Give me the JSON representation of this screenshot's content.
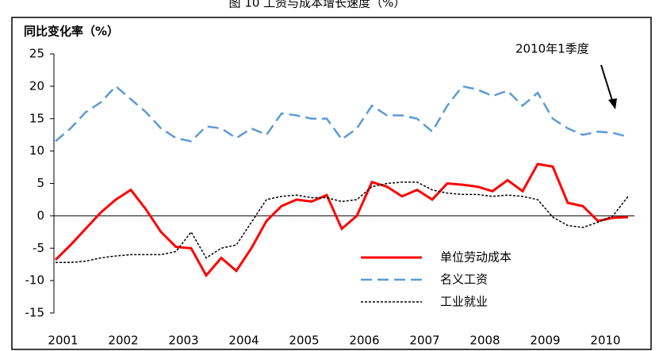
{
  "chart_data": {
    "type": "line",
    "title": "图 10 工资与成本增长速度（%）",
    "y_label": "同比变化率（%）",
    "annotation": "2010年1季度",
    "categories": [
      null,
      "2001",
      null,
      null,
      null,
      "2002",
      null,
      null,
      null,
      "2003",
      null,
      null,
      null,
      "2004",
      null,
      null,
      null,
      "2005",
      null,
      null,
      null,
      "2006",
      null,
      null,
      null,
      "2007",
      null,
      null,
      null,
      "2008",
      null,
      null,
      null,
      "2009",
      null,
      null,
      null,
      "2010",
      null
    ],
    "series": [
      {
        "name": "单位劳动成本",
        "color": "#ff0000",
        "dash": "solid",
        "values": [
          -6.8,
          -4.5,
          -2,
          0.5,
          2.5,
          4,
          1,
          -2.5,
          -4.8,
          -5,
          -9.2,
          -6.5,
          -8.5,
          -5,
          -0.8,
          1.5,
          2.5,
          2.2,
          3.2,
          -2,
          0,
          5.2,
          4.5,
          3,
          4,
          2.5,
          5,
          4.8,
          4.5,
          3.8,
          5.5,
          3.8,
          8,
          7.6,
          2,
          1.5,
          -0.8,
          -0.3,
          -0.2
        ]
      },
      {
        "name": "名义工资",
        "color": "#5b9bd5",
        "dash": "dashed",
        "values": [
          11.5,
          13.5,
          16,
          17.5,
          20,
          18,
          16,
          13.5,
          12,
          11.5,
          13.8,
          13.5,
          12,
          13.5,
          12.5,
          15.8,
          15.5,
          15,
          15,
          11.8,
          13.5,
          17,
          15.5,
          15.5,
          15,
          13,
          17,
          20,
          19.5,
          18.5,
          19.3,
          17,
          19,
          15,
          13.5,
          12.5,
          13,
          12.8,
          12.2
        ]
      },
      {
        "name": "工业就业",
        "color": "#000000",
        "dash": "dotted",
        "values": [
          -7.2,
          -7.2,
          -7,
          -6.5,
          -6.2,
          -6,
          -6,
          -6,
          -5.5,
          -2.5,
          -6.5,
          -5,
          -4.5,
          -1,
          2.5,
          3,
          3.2,
          2.8,
          2.8,
          2.2,
          2.5,
          4.5,
          5,
          5.2,
          5.2,
          4,
          3.5,
          3.3,
          3.3,
          3,
          3.2,
          3,
          2.5,
          -0.2,
          -1.5,
          -1.8,
          -1,
          0,
          3
        ]
      }
    ],
    "ylim": [
      -15,
      25
    ],
    "yticks": [
      -15,
      -10,
      -5,
      0,
      5,
      10,
      15,
      20,
      25
    ],
    "grid": false
  }
}
